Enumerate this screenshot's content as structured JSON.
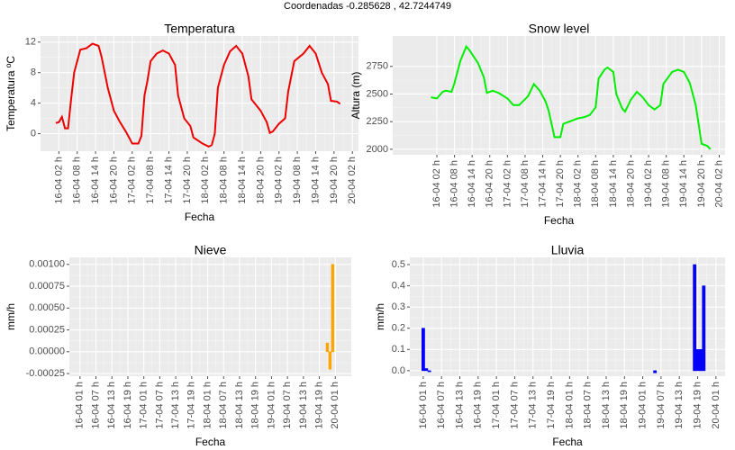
{
  "title": "Coordenadas  -0.285628 ,  42.7244749",
  "chart_data": [
    {
      "type": "line",
      "title": "Temperatura",
      "x_label": "Fecha",
      "y_label": "Temperatura ºC",
      "color": "#ee0000",
      "x": [
        1,
        2,
        3,
        4,
        5,
        6,
        7,
        9,
        11,
        13,
        15,
        16,
        18,
        20,
        22,
        24,
        26,
        28,
        29,
        30,
        31,
        32,
        34,
        36,
        38,
        40,
        41,
        43,
        45,
        46,
        49,
        51,
        52,
        53,
        54,
        56,
        58,
        60,
        62,
        64,
        65,
        68,
        70,
        71,
        72,
        74,
        76,
        77,
        79,
        82,
        84,
        86,
        88,
        90,
        91,
        93,
        94
      ],
      "values": [
        1.4,
        1.5,
        2.2,
        0.7,
        0.7,
        4.5,
        8,
        11,
        11.2,
        11.8,
        11.5,
        10,
        6,
        3,
        1.5,
        0.2,
        -1.3,
        -1.3,
        -0.3,
        5,
        7,
        9.5,
        10.5,
        10.9,
        10.5,
        9,
        5,
        2,
        1,
        -0.5,
        -1.3,
        -1.7,
        -1.5,
        0,
        6,
        9,
        10.8,
        11.5,
        10.5,
        7.5,
        4.5,
        3,
        1.5,
        0.1,
        0.3,
        1.3,
        2,
        5.5,
        9.5,
        10.5,
        11.5,
        10.5,
        8,
        6.5,
        4.3,
        4.2,
        3.9
      ],
      "xlim": [
        -4,
        100
      ],
      "ylim": [
        -2.3,
        12.8
      ],
      "yticks": [
        0,
        4,
        8,
        12
      ],
      "xticks": [
        {
          "value": 2,
          "label": "16-04 02 h"
        },
        {
          "value": 8,
          "label": "16-04 08 h"
        },
        {
          "value": 14,
          "label": "16-04 14 h"
        },
        {
          "value": 20,
          "label": "16-04 20 h"
        },
        {
          "value": 26,
          "label": "17-04 02 h"
        },
        {
          "value": 32,
          "label": "17-04 08 h"
        },
        {
          "value": 38,
          "label": "17-04 14 h"
        },
        {
          "value": 44,
          "label": "17-04 20 h"
        },
        {
          "value": 50,
          "label": "18-04 02 h"
        },
        {
          "value": 56,
          "label": "18-04 08 h"
        },
        {
          "value": 62,
          "label": "18-04 14 h"
        },
        {
          "value": 68,
          "label": "18-04 20 h"
        },
        {
          "value": 74,
          "label": "19-04 02 h"
        },
        {
          "value": 80,
          "label": "19-04 08 h"
        },
        {
          "value": 86,
          "label": "19-04 14 h"
        },
        {
          "value": 92,
          "label": "19-04 20 h"
        },
        {
          "value": 98,
          "label": "20-04 02 h"
        }
      ]
    },
    {
      "type": "line",
      "title": "Snow level",
      "x_label": "Fecha",
      "y_label": "Altura (m)",
      "color": "#00ee00",
      "x": [
        0,
        2,
        4,
        5,
        7,
        8,
        10,
        12,
        13,
        16,
        18,
        19,
        21,
        23,
        26,
        28,
        30,
        33,
        35,
        37,
        39,
        40,
        42,
        44,
        45,
        47,
        50,
        52,
        54,
        56,
        57,
        59,
        60,
        62,
        63,
        65,
        66,
        68,
        70,
        72,
        74,
        76,
        78,
        79,
        82,
        84,
        86,
        88,
        90,
        91,
        92,
        94,
        95
      ],
      "values": [
        2470,
        2460,
        2520,
        2530,
        2520,
        2600,
        2800,
        2930,
        2900,
        2780,
        2650,
        2510,
        2530,
        2510,
        2460,
        2400,
        2400,
        2480,
        2590,
        2530,
        2430,
        2350,
        2110,
        2110,
        2230,
        2250,
        2280,
        2290,
        2310,
        2380,
        2640,
        2720,
        2740,
        2700,
        2500,
        2370,
        2340,
        2450,
        2520,
        2470,
        2400,
        2360,
        2400,
        2590,
        2700,
        2720,
        2700,
        2600,
        2400,
        2230,
        2050,
        2030,
        2000
      ],
      "xlim": [
        -13,
        100
      ],
      "ylim": [
        1950,
        3025
      ],
      "yticks": [
        2000,
        2250,
        2500,
        2750
      ],
      "xticks": [
        {
          "value": 2,
          "label": "16-04 02 h"
        },
        {
          "value": 8,
          "label": "16-04 08 h"
        },
        {
          "value": 14,
          "label": "16-04 14 h"
        },
        {
          "value": 20,
          "label": "16-04 20 h"
        },
        {
          "value": 26,
          "label": "17-04 02 h"
        },
        {
          "value": 32,
          "label": "17-04 08 h"
        },
        {
          "value": 38,
          "label": "17-04 14 h"
        },
        {
          "value": 44,
          "label": "17-04 20 h"
        },
        {
          "value": 50,
          "label": "18-04 02 h"
        },
        {
          "value": 56,
          "label": "18-04 08 h"
        },
        {
          "value": 62,
          "label": "18-04 14 h"
        },
        {
          "value": 68,
          "label": "18-04 20 h"
        },
        {
          "value": 74,
          "label": "19-04 02 h"
        },
        {
          "value": 80,
          "label": "19-04 08 h"
        },
        {
          "value": 86,
          "label": "19-04 14 h"
        },
        {
          "value": 92,
          "label": "19-04 20 h"
        },
        {
          "value": 98,
          "label": "20-04 02 h"
        }
      ]
    },
    {
      "type": "bar",
      "title": "Nieve",
      "x_label": "Fecha",
      "y_label": "mm/h",
      "color": "#ffa500",
      "x": [
        1,
        2,
        3,
        4,
        5,
        6,
        7,
        8,
        9,
        10,
        11,
        12,
        13,
        14,
        15,
        16,
        17,
        18,
        19,
        20,
        21,
        22,
        23,
        24,
        25,
        26,
        27,
        28,
        29,
        30,
        31,
        32,
        33,
        34,
        35,
        36,
        37,
        38,
        39,
        40,
        41,
        42,
        43,
        44,
        45,
        46,
        47,
        48,
        49,
        50,
        51,
        52,
        53,
        54,
        55,
        56,
        57,
        58,
        59,
        60,
        61,
        62,
        63,
        64,
        65,
        66,
        67,
        68,
        69,
        70,
        71,
        72,
        73,
        74,
        75,
        76,
        77,
        78,
        79,
        80,
        81,
        82,
        83,
        84,
        85,
        86,
        87,
        88,
        89,
        90,
        91,
        92,
        93,
        94,
        95,
        96
      ],
      "values": [
        0,
        0,
        0,
        0,
        0,
        0,
        0,
        0,
        0,
        0,
        0,
        0,
        0,
        0,
        0,
        0,
        0,
        0,
        0,
        0,
        0,
        0,
        0,
        0,
        0,
        0,
        0,
        0,
        0,
        0,
        0,
        0,
        0,
        0,
        0,
        0,
        0,
        0,
        0,
        0,
        0,
        0,
        0,
        0,
        0,
        0,
        0,
        0,
        0,
        0,
        0,
        0,
        0,
        0,
        0,
        0,
        0,
        0,
        0,
        0,
        0,
        0,
        0,
        0,
        0,
        0,
        0,
        0,
        0,
        0,
        0,
        0,
        0,
        0,
        0,
        0,
        0,
        0,
        0,
        0,
        0,
        0,
        0,
        0,
        0,
        0,
        0,
        0,
        0,
        0,
        0,
        0,
        0,
        0.0001,
        -0.0002,
        0.001
      ],
      "xlim": [
        -3,
        103
      ],
      "ylim": [
        -0.00028,
        0.00108
      ],
      "yticks": [
        {
          "value": -0.00025,
          "label": "-0.00025"
        },
        {
          "value": 0,
          "label": "0.00000"
        },
        {
          "value": 0.00025,
          "label": "0.00025"
        },
        {
          "value": 0.0005,
          "label": "0.00050"
        },
        {
          "value": 0.00075,
          "label": "0.00075"
        },
        {
          "value": 0.001,
          "label": "0.00100"
        }
      ],
      "xticks": [
        {
          "value": 1,
          "label": "16-04 01 h"
        },
        {
          "value": 7,
          "label": "16-04 07 h"
        },
        {
          "value": 13,
          "label": "16-04 13 h"
        },
        {
          "value": 19,
          "label": "16-04 19 h"
        },
        {
          "value": 25,
          "label": "17-04 01 h"
        },
        {
          "value": 31,
          "label": "17-04 07 h"
        },
        {
          "value": 37,
          "label": "17-04 13 h"
        },
        {
          "value": 43,
          "label": "17-04 19 h"
        },
        {
          "value": 49,
          "label": "18-04 01 h"
        },
        {
          "value": 55,
          "label": "18-04 07 h"
        },
        {
          "value": 61,
          "label": "18-04 13 h"
        },
        {
          "value": 67,
          "label": "18-04 19 h"
        },
        {
          "value": 73,
          "label": "19-04 01 h"
        },
        {
          "value": 79,
          "label": "19-04 07 h"
        },
        {
          "value": 85,
          "label": "19-04 13 h"
        },
        {
          "value": 91,
          "label": "19-04 19 h"
        },
        {
          "value": 97,
          "label": "20-04 01 h"
        }
      ]
    },
    {
      "type": "bar",
      "title": "Lluvia",
      "x_label": "Fecha",
      "y_label": "mm/h",
      "color": "#0000ff",
      "x": [
        1,
        2,
        3,
        4,
        5,
        6,
        7,
        8,
        9,
        10,
        11,
        12,
        13,
        14,
        15,
        16,
        17,
        18,
        19,
        20,
        21,
        22,
        23,
        24,
        25,
        26,
        27,
        28,
        29,
        30,
        31,
        32,
        33,
        34,
        35,
        36,
        37,
        38,
        39,
        40,
        41,
        42,
        43,
        44,
        45,
        46,
        47,
        48,
        49,
        50,
        51,
        52,
        53,
        54,
        55,
        56,
        57,
        58,
        59,
        60,
        61,
        62,
        63,
        64,
        65,
        66,
        67,
        68,
        69,
        70,
        71,
        72,
        73,
        74,
        75,
        76,
        77,
        78,
        79,
        80,
        81,
        82,
        83,
        84,
        85,
        86,
        87,
        88,
        89,
        90,
        91,
        92,
        93
      ],
      "values": [
        0.2,
        0.01,
        -0.005,
        0,
        0,
        0,
        0,
        0,
        0,
        0,
        0,
        0,
        0,
        0,
        0,
        0,
        0,
        0,
        0,
        0,
        0,
        0,
        0,
        0,
        0,
        0,
        0,
        0,
        0,
        0,
        0,
        0,
        0,
        0,
        0,
        0,
        0,
        0,
        0,
        0,
        0,
        0,
        0,
        0,
        0,
        0,
        0,
        0,
        0,
        0,
        0,
        0,
        0,
        0,
        0,
        0,
        0,
        0,
        0,
        0,
        0,
        0,
        0,
        0,
        0,
        0,
        0,
        0,
        0,
        0,
        0,
        0,
        0,
        0,
        0,
        0,
        -0.01,
        0,
        0,
        0,
        0,
        0,
        0,
        0,
        0,
        0,
        0,
        0,
        0,
        0.5,
        0.1,
        0.1,
        0.4
      ],
      "xlim": [
        -3.4,
        100
      ],
      "ylim": [
        -0.026,
        0.534
      ],
      "yticks": [
        {
          "value": 0,
          "label": "0.0"
        },
        {
          "value": 0.1,
          "label": "0.1"
        },
        {
          "value": 0.2,
          "label": "0.2"
        },
        {
          "value": 0.3,
          "label": "0.3"
        },
        {
          "value": 0.4,
          "label": "0.4"
        },
        {
          "value": 0.5,
          "label": "0.5"
        }
      ],
      "xticks": [
        {
          "value": 1,
          "label": "16-04 01 h"
        },
        {
          "value": 7,
          "label": "16-04 07 h"
        },
        {
          "value": 13,
          "label": "16-04 13 h"
        },
        {
          "value": 19,
          "label": "16-04 19 h"
        },
        {
          "value": 25,
          "label": "17-04 01 h"
        },
        {
          "value": 31,
          "label": "17-04 07 h"
        },
        {
          "value": 37,
          "label": "17-04 13 h"
        },
        {
          "value": 43,
          "label": "17-04 19 h"
        },
        {
          "value": 49,
          "label": "18-04 01 h"
        },
        {
          "value": 55,
          "label": "18-04 07 h"
        },
        {
          "value": 61,
          "label": "18-04 13 h"
        },
        {
          "value": 67,
          "label": "18-04 19 h"
        },
        {
          "value": 73,
          "label": "19-04 01 h"
        },
        {
          "value": 79,
          "label": "19-04 07 h"
        },
        {
          "value": 85,
          "label": "19-04 13 h"
        },
        {
          "value": 91,
          "label": "19-04 19 h"
        },
        {
          "value": 97,
          "label": "20-04 01 h"
        }
      ]
    }
  ]
}
